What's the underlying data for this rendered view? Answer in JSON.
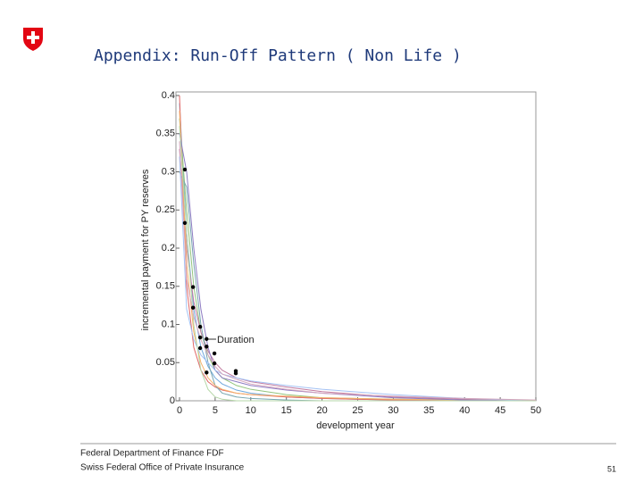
{
  "header": {
    "title": "Appendix: Run-Off Pattern ( Non Life )"
  },
  "chart_data": {
    "type": "line",
    "xlabel": "development year",
    "ylabel": "incremental payment for PY reserves",
    "annotation": "Duration",
    "x": [
      0,
      1,
      2,
      3,
      4,
      5,
      6,
      8,
      10,
      15,
      20,
      30,
      40,
      50
    ],
    "series": [
      {
        "color": "#6fa8dc",
        "values": [
          0.39,
          0.22,
          0.12,
          0.07,
          0.045,
          0.03,
          0.022,
          0.014,
          0.01,
          0.005,
          0.003,
          0.001,
          0,
          0
        ]
      },
      {
        "color": "#93c47d",
        "values": [
          0.37,
          0.25,
          0.15,
          0.09,
          0.06,
          0.04,
          0.03,
          0.02,
          0.015,
          0.008,
          0.004,
          0.002,
          0.001,
          0
        ]
      },
      {
        "color": "#e06666",
        "values": [
          0.4,
          0.15,
          0.07,
          0.04,
          0.025,
          0.018,
          0.014,
          0.01,
          0.008,
          0.005,
          0.003,
          0.001,
          0,
          0
        ]
      },
      {
        "color": "#c27ba0",
        "values": [
          0.33,
          0.2,
          0.13,
          0.09,
          0.065,
          0.05,
          0.04,
          0.03,
          0.025,
          0.018,
          0.012,
          0.005,
          0.002,
          0
        ]
      },
      {
        "color": "#76a5af",
        "values": [
          0.3,
          0.28,
          0.18,
          0.1,
          0.05,
          0.02,
          0.01,
          0.005,
          0.003,
          0.001,
          0,
          0,
          0,
          0
        ]
      },
      {
        "color": "#f6b26b",
        "values": [
          0.38,
          0.18,
          0.09,
          0.05,
          0.03,
          0.02,
          0.015,
          0.01,
          0.008,
          0.006,
          0.004,
          0.002,
          0.001,
          0
        ]
      },
      {
        "color": "#8e7cc3",
        "values": [
          0.35,
          0.3,
          0.2,
          0.12,
          0.07,
          0.04,
          0.03,
          0.025,
          0.02,
          0.014,
          0.01,
          0.004,
          0.001,
          0
        ]
      },
      {
        "color": "#a4c2f4",
        "values": [
          0.32,
          0.12,
          0.08,
          0.06,
          0.05,
          0.04,
          0.035,
          0.03,
          0.026,
          0.02,
          0.015,
          0.008,
          0.003,
          0
        ]
      },
      {
        "color": "#b6d7a8",
        "values": [
          0.36,
          0.22,
          0.1,
          0.04,
          0.015,
          0.005,
          0.002,
          0,
          0,
          0,
          0,
          0,
          0,
          0
        ]
      },
      {
        "color": "#d5a6bd",
        "values": [
          0.34,
          0.16,
          0.11,
          0.08,
          0.06,
          0.045,
          0.035,
          0.028,
          0.022,
          0.015,
          0.01,
          0.006,
          0.003,
          0.001
        ]
      },
      {
        "mode": "markers",
        "color": "#000000",
        "x": [
          0.75,
          0.75,
          1.9,
          1.9,
          2.9,
          2.9,
          3.8,
          3.8,
          2.9,
          4.9,
          4.9,
          3.8,
          7.9,
          7.9
        ],
        "values": [
          0.303,
          0.233,
          0.149,
          0.122,
          0.097,
          0.083,
          0.081,
          0.071,
          0.069,
          0.062,
          0.049,
          0.037,
          0.039,
          0.036
        ]
      }
    ],
    "xlim": [
      0,
      50
    ],
    "xticks": [
      0,
      5,
      10,
      15,
      20,
      25,
      30,
      35,
      40,
      45,
      50
    ],
    "ylim": [
      0,
      0.4
    ],
    "yticks": [
      0,
      0.05,
      0.1,
      0.15,
      0.2,
      0.25,
      0.3,
      0.35,
      0.4
    ]
  },
  "footer": {
    "lines": [
      "Federal Department of Finance FDF",
      "Swiss Federal Office of Private Insurance"
    ],
    "page_number": "51"
  }
}
